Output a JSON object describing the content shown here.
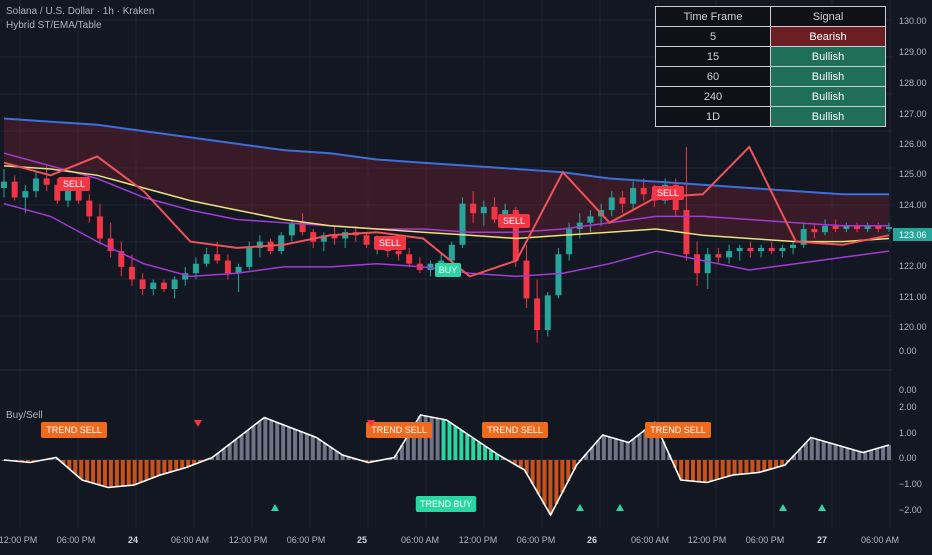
{
  "header": {
    "title": "Solana / U.S. Dollar · 1h · Kraken",
    "indicator": "Hybrid ST/EMA/Table"
  },
  "signal_table": {
    "headers": [
      "Time Frame",
      "Signal"
    ],
    "rows": [
      {
        "tf": "5",
        "signal": "Bearish",
        "state": "bear"
      },
      {
        "tf": "15",
        "signal": "Bullish",
        "state": "bull"
      },
      {
        "tf": "60",
        "signal": "Bullish",
        "state": "bull"
      },
      {
        "tf": "240",
        "signal": "Bullish",
        "state": "bull"
      },
      {
        "tf": "1D",
        "signal": "Bullish",
        "state": "bull"
      }
    ]
  },
  "price_axis": [
    "130.00",
    "129.00",
    "128.00",
    "127.00",
    "126.00",
    "125.00",
    "124.00",
    "122.00",
    "121.00",
    "120.00",
    "0.00"
  ],
  "last_price": "123.06",
  "osc_axis": [
    "0.00",
    "2.00",
    "1.00",
    "0.00",
    "−1.00",
    "−2.00"
  ],
  "osc_title": "Buy/Sell",
  "time_axis": [
    {
      "label": "12:00 PM",
      "bold": false
    },
    {
      "label": "06:00 PM",
      "bold": false
    },
    {
      "label": "24",
      "bold": true
    },
    {
      "label": "06:00 AM",
      "bold": false
    },
    {
      "label": "12:00 PM",
      "bold": false
    },
    {
      "label": "06:00 PM",
      "bold": false
    },
    {
      "label": "25",
      "bold": true
    },
    {
      "label": "06:00 AM",
      "bold": false
    },
    {
      "label": "12:00 PM",
      "bold": false
    },
    {
      "label": "06:00 PM",
      "bold": false
    },
    {
      "label": "26",
      "bold": true
    },
    {
      "label": "06:00 AM",
      "bold": false
    },
    {
      "label": "12:00 PM",
      "bold": false
    },
    {
      "label": "06:00 PM",
      "bold": false
    },
    {
      "label": "27",
      "bold": true
    },
    {
      "label": "06:00 AM",
      "bold": false
    }
  ],
  "price_signals": [
    {
      "label": "SELL",
      "type": "sell"
    },
    {
      "label": "SELL",
      "type": "sell"
    },
    {
      "label": "SELL",
      "type": "sell"
    },
    {
      "label": "SELL",
      "type": "sell"
    },
    {
      "label": "BUY",
      "type": "buy"
    }
  ],
  "osc_signals": [
    {
      "label": "TREND SELL",
      "type": "sell"
    },
    {
      "label": "TREND SELL",
      "type": "sell"
    },
    {
      "label": "TREND SELL",
      "type": "sell"
    },
    {
      "label": "TREND SELL",
      "type": "sell"
    },
    {
      "label": "TREND BUY",
      "type": "buy"
    }
  ],
  "colors": {
    "background": "#131722",
    "bull": "#26a69a",
    "bear": "#f23645",
    "supertrend_up": "#22e27a",
    "supertrend_down": "#f0525a",
    "ema_fast": "#e9e37a",
    "ema_slow": "#3b6fe0",
    "band": "#a23bd3",
    "osc_up": "#2ad6a2",
    "osc_down": "#c8521b",
    "osc_neutral": "#6f7385",
    "grid": "#1f2433"
  },
  "chart_data": {
    "type": "candlestick",
    "note_ohlc_source": "estimated from chart",
    "candles": [
      [
        124.3,
        124.9,
        124.0,
        124.5
      ],
      [
        124.5,
        124.7,
        123.9,
        124.0
      ],
      [
        124.0,
        124.4,
        123.5,
        124.2
      ],
      [
        124.2,
        124.8,
        124.0,
        124.6
      ],
      [
        124.6,
        125.0,
        124.2,
        124.4
      ],
      [
        124.4,
        124.6,
        123.8,
        123.9
      ],
      [
        123.9,
        124.5,
        123.7,
        124.3
      ],
      [
        124.3,
        124.6,
        123.8,
        123.9
      ],
      [
        123.9,
        124.1,
        123.2,
        123.4
      ],
      [
        123.4,
        123.8,
        122.5,
        122.7
      ],
      [
        122.7,
        123.2,
        122.1,
        122.3
      ],
      [
        122.3,
        122.6,
        121.5,
        121.8
      ],
      [
        121.8,
        122.2,
        121.2,
        121.4
      ],
      [
        121.4,
        121.6,
        120.9,
        121.1
      ],
      [
        121.1,
        121.4,
        120.9,
        121.3
      ],
      [
        121.3,
        121.4,
        121.0,
        121.1
      ],
      [
        121.1,
        121.5,
        120.8,
        121.4
      ],
      [
        121.4,
        121.8,
        121.2,
        121.6
      ],
      [
        121.6,
        122.1,
        121.4,
        121.9
      ],
      [
        121.9,
        122.4,
        121.8,
        122.2
      ],
      [
        122.2,
        122.6,
        121.9,
        122.0
      ],
      [
        122.0,
        122.2,
        121.4,
        121.6
      ],
      [
        121.6,
        121.9,
        121.0,
        121.8
      ],
      [
        121.8,
        122.6,
        121.7,
        122.4
      ],
      [
        122.4,
        122.8,
        122.1,
        122.6
      ],
      [
        122.6,
        122.7,
        122.2,
        122.3
      ],
      [
        122.3,
        122.9,
        122.2,
        122.8
      ],
      [
        122.8,
        123.3,
        122.6,
        123.2
      ],
      [
        123.2,
        123.5,
        122.8,
        122.9
      ],
      [
        122.9,
        123.0,
        122.4,
        122.6
      ],
      [
        122.6,
        122.9,
        122.3,
        122.8
      ],
      [
        122.8,
        123.1,
        122.5,
        122.7
      ],
      [
        122.7,
        123.0,
        122.4,
        122.9
      ],
      [
        122.9,
        123.1,
        122.6,
        122.8
      ],
      [
        122.8,
        122.9,
        122.4,
        122.5
      ],
      [
        122.5,
        122.8,
        122.2,
        122.6
      ],
      [
        122.6,
        122.7,
        122.1,
        122.3
      ],
      [
        122.3,
        122.5,
        122.0,
        122.2
      ],
      [
        122.2,
        122.4,
        121.8,
        121.9
      ],
      [
        121.9,
        122.1,
        121.6,
        121.7
      ],
      [
        121.7,
        122.0,
        121.5,
        121.9
      ],
      [
        121.9,
        122.2,
        121.7,
        122.0
      ],
      [
        122.0,
        122.6,
        121.9,
        122.5
      ],
      [
        122.5,
        124.0,
        122.4,
        123.8
      ],
      [
        123.8,
        124.2,
        123.2,
        123.5
      ],
      [
        123.5,
        123.9,
        123.1,
        123.7
      ],
      [
        123.7,
        124.0,
        123.2,
        123.3
      ],
      [
        123.3,
        123.8,
        123.1,
        123.6
      ],
      [
        123.6,
        123.7,
        121.8,
        122.0
      ],
      [
        122.0,
        122.5,
        120.5,
        120.8
      ],
      [
        120.8,
        121.4,
        119.4,
        119.8
      ],
      [
        119.8,
        121.0,
        119.6,
        120.9
      ],
      [
        120.9,
        122.4,
        120.8,
        122.2
      ],
      [
        122.2,
        123.2,
        122.0,
        123.0
      ],
      [
        123.0,
        123.5,
        122.7,
        123.2
      ],
      [
        123.2,
        123.6,
        122.9,
        123.4
      ],
      [
        123.4,
        123.8,
        123.1,
        123.6
      ],
      [
        123.6,
        124.2,
        123.4,
        124.0
      ],
      [
        124.0,
        124.2,
        123.5,
        123.8
      ],
      [
        123.8,
        124.5,
        123.6,
        124.3
      ],
      [
        124.3,
        124.6,
        123.9,
        124.1
      ],
      [
        124.1,
        124.4,
        123.7,
        123.9
      ],
      [
        123.9,
        124.6,
        123.8,
        124.4
      ],
      [
        124.4,
        124.6,
        123.4,
        123.6
      ],
      [
        123.6,
        125.6,
        122.0,
        122.2
      ],
      [
        122.2,
        122.6,
        121.2,
        121.6
      ],
      [
        121.6,
        122.4,
        121.1,
        122.2
      ],
      [
        122.2,
        122.4,
        121.9,
        122.1
      ],
      [
        122.1,
        122.5,
        121.9,
        122.3
      ],
      [
        122.3,
        122.5,
        122.0,
        122.4
      ],
      [
        122.4,
        122.6,
        122.1,
        122.3
      ],
      [
        122.3,
        122.5,
        122.1,
        122.4
      ],
      [
        122.4,
        122.6,
        122.2,
        122.3
      ],
      [
        122.3,
        122.5,
        122.1,
        122.4
      ],
      [
        122.4,
        122.6,
        122.2,
        122.5
      ],
      [
        122.5,
        123.2,
        122.4,
        123.0
      ],
      [
        123.0,
        123.2,
        122.7,
        122.9
      ],
      [
        122.9,
        123.3,
        122.8,
        123.1
      ],
      [
        123.1,
        123.3,
        122.9,
        123.0
      ],
      [
        123.0,
        123.2,
        122.9,
        123.1
      ],
      [
        123.1,
        123.2,
        122.9,
        123.0
      ],
      [
        123.0,
        123.2,
        122.9,
        123.1
      ],
      [
        123.1,
        123.2,
        122.9,
        123.0
      ],
      [
        123.0,
        123.2,
        122.9,
        123.06
      ]
    ],
    "ema_slow": [
      126.5,
      126.4,
      126.3,
      126.1,
      125.9,
      125.7,
      125.5,
      125.4,
      125.2,
      125.1,
      125.0,
      124.9,
      124.8,
      124.6,
      124.5,
      124.4,
      124.3,
      124.2,
      124.1,
      124.1
    ],
    "ema_fast": [
      125.0,
      124.9,
      124.7,
      124.3,
      123.9,
      123.6,
      123.3,
      123.1,
      123.0,
      122.9,
      122.8,
      122.7,
      122.8,
      122.9,
      123.0,
      122.8,
      122.7,
      122.6,
      122.6,
      122.7
    ],
    "band_upper": [
      125.4,
      125.0,
      124.6,
      124.0,
      123.6,
      123.3,
      123.2,
      123.1,
      123.0,
      123.0,
      122.9,
      122.9,
      123.0,
      123.2,
      123.4,
      123.4,
      123.3,
      123.2,
      123.1,
      123.1
    ],
    "band_lower": [
      123.8,
      123.4,
      122.6,
      121.9,
      121.5,
      121.6,
      121.8,
      121.8,
      121.9,
      121.8,
      121.6,
      121.5,
      121.6,
      121.9,
      122.3,
      122.0,
      121.7,
      121.9,
      122.1,
      122.3
    ],
    "supertrend": [
      125.1,
      124.7,
      125.3,
      124.2,
      122.6,
      122.4,
      122.5,
      122.8,
      122.9,
      122.7,
      121.5,
      122.0,
      124.8,
      123.2,
      124.0,
      124.1,
      125.6,
      122.6,
      122.5,
      122.8
    ],
    "oscillator": [
      0.0,
      -0.1,
      0.1,
      -0.8,
      -1.1,
      -1.0,
      -0.6,
      -0.3,
      0.1,
      0.9,
      1.7,
      1.3,
      0.9,
      0.2,
      -0.1,
      0.1,
      1.8,
      1.6,
      0.9,
      0.2,
      -0.4,
      -2.2,
      -0.2,
      1.0,
      0.7,
      1.5,
      -0.8,
      -0.9,
      -0.6,
      -0.5,
      -0.2,
      0.9,
      0.6,
      0.3,
      0.6
    ],
    "price_range": [
      119.4,
      130.0
    ],
    "osc_range": [
      -2.4,
      2.2
    ]
  }
}
